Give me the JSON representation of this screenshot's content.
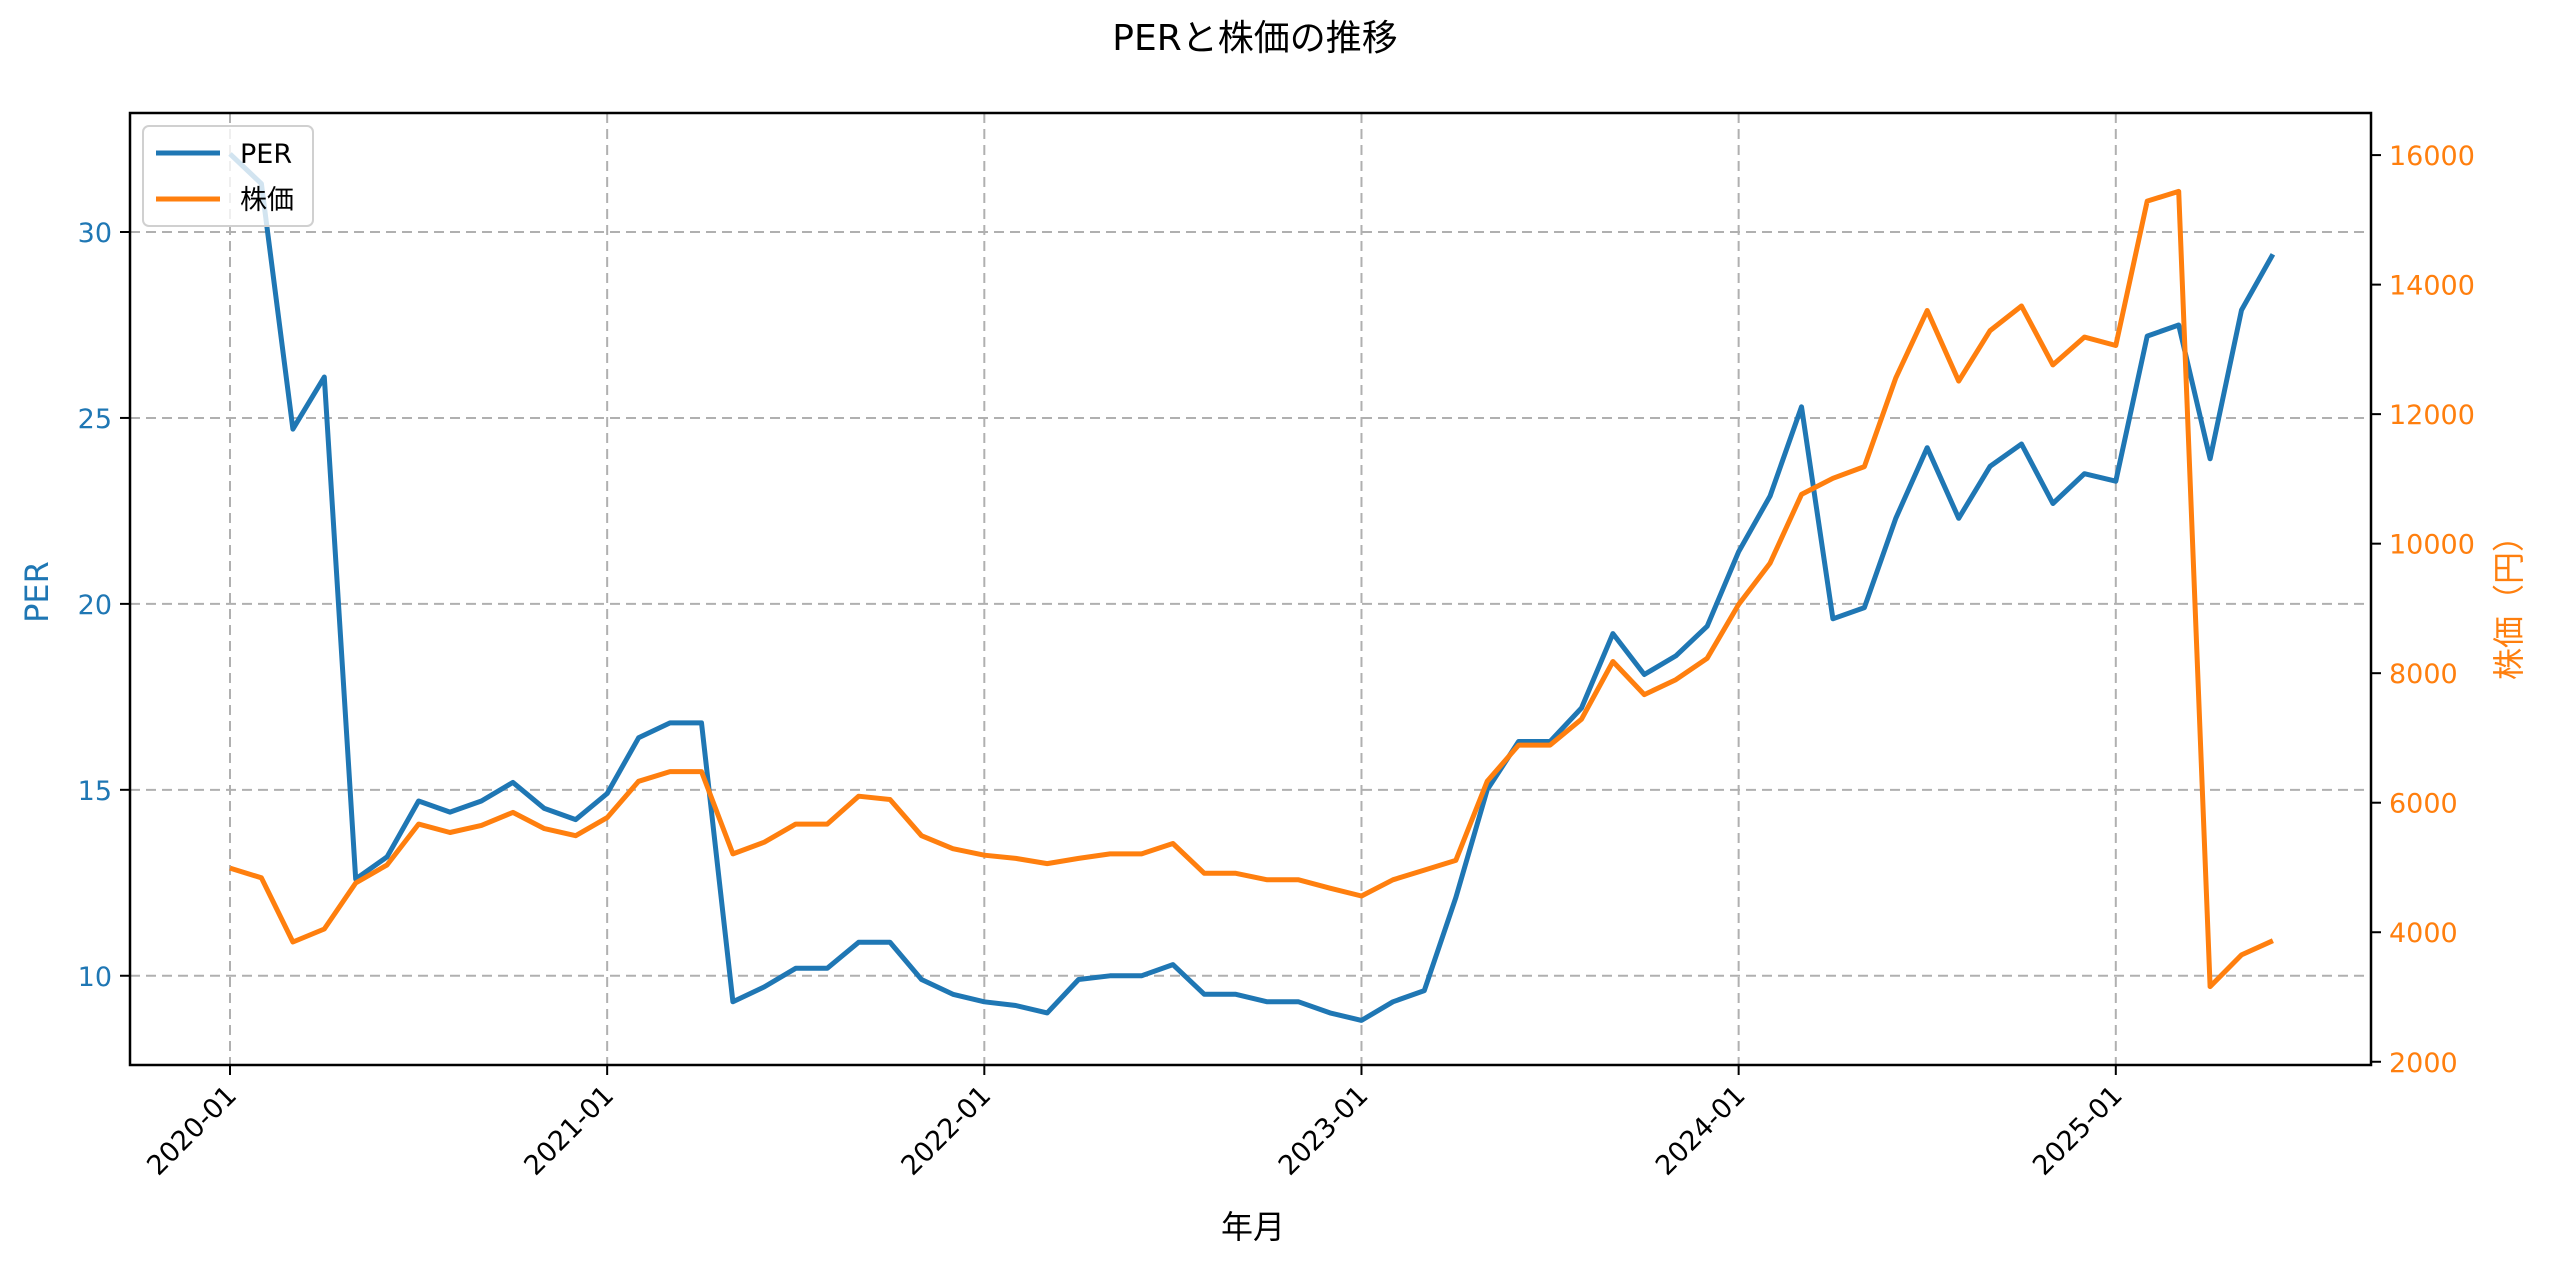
{
  "chart_data": {
    "type": "line",
    "title": "PERと株価の推移",
    "xlabel": "年月",
    "ylabel": "PER",
    "ylabel_right": "株価（円）",
    "grid": true,
    "legend_position": "upper left",
    "x_tick_labels": [
      "2020-01",
      "2021-01",
      "2022-01",
      "2023-01",
      "2024-01",
      "2025-01"
    ],
    "y_ticks_left": [
      10,
      15,
      20,
      25,
      30
    ],
    "y_ticks_right": [
      2000,
      4000,
      6000,
      8000,
      10000,
      12000,
      14000,
      16000
    ],
    "ylim": [
      7.6,
      33.2
    ],
    "ylim_right": [
      1950,
      16650
    ],
    "x": [
      "2020-01",
      "2020-02",
      "2020-03",
      "2020-04",
      "2020-05",
      "2020-06",
      "2020-07",
      "2020-08",
      "2020-09",
      "2020-10",
      "2020-11",
      "2020-12",
      "2021-01",
      "2021-02",
      "2021-03",
      "2021-04",
      "2021-05",
      "2021-06",
      "2021-07",
      "2021-08",
      "2021-09",
      "2021-10",
      "2021-11",
      "2021-12",
      "2022-01",
      "2022-02",
      "2022-03",
      "2022-04",
      "2022-05",
      "2022-06",
      "2022-07",
      "2022-08",
      "2022-09",
      "2022-10",
      "2022-11",
      "2022-12",
      "2023-01",
      "2023-02",
      "2023-03",
      "2023-04",
      "2023-05",
      "2023-06",
      "2023-07",
      "2023-08",
      "2023-09",
      "2023-10",
      "2023-11",
      "2023-12",
      "2024-01",
      "2024-02",
      "2024-03",
      "2024-04",
      "2024-05",
      "2024-06",
      "2024-07",
      "2024-08",
      "2024-09",
      "2024-10",
      "2024-11",
      "2024-12",
      "2025-01",
      "2025-02",
      "2025-03",
      "2025-04",
      "2025-05",
      "2025-06"
    ],
    "series": [
      {
        "name": "PER",
        "axis": "left",
        "color": "#1f77b4",
        "values": [
          32.1,
          31.3,
          24.7,
          26.1,
          12.6,
          13.2,
          14.7,
          14.4,
          14.7,
          15.2,
          14.5,
          14.2,
          14.9,
          16.4,
          16.8,
          16.8,
          9.3,
          9.7,
          10.2,
          10.2,
          10.9,
          10.9,
          9.9,
          9.5,
          9.3,
          9.2,
          9.0,
          9.9,
          10.0,
          10.0,
          10.3,
          9.5,
          9.5,
          9.3,
          9.3,
          9.0,
          8.8,
          9.3,
          9.6,
          12.1,
          15.0,
          16.3,
          16.3,
          17.2,
          19.2,
          18.1,
          18.6,
          19.4,
          21.4,
          22.9,
          25.3,
          19.6,
          19.9,
          22.3,
          24.2,
          22.3,
          23.7,
          24.3,
          22.7,
          23.5,
          23.3,
          27.2,
          27.5,
          23.9,
          27.9,
          29.4
        ]
      },
      {
        "name": "株価",
        "axis": "right",
        "color": "#ff7f0e",
        "values": [
          4990,
          4840,
          3850,
          4050,
          4760,
          5040,
          5670,
          5540,
          5650,
          5850,
          5600,
          5490,
          5770,
          6330,
          6480,
          6480,
          5210,
          5390,
          5670,
          5670,
          6100,
          6050,
          5490,
          5290,
          5190,
          5140,
          5060,
          5140,
          5210,
          5210,
          5370,
          4910,
          4910,
          4810,
          4810,
          4680,
          4560,
          4810,
          4960,
          5110,
          6330,
          6890,
          6890,
          7290,
          8180,
          7670,
          7900,
          8230,
          9060,
          9700,
          10760,
          11010,
          11190,
          12560,
          13600,
          12510,
          13290,
          13670,
          12760,
          13190,
          13060,
          15290,
          15440,
          3160,
          3650,
          3870
        ]
      }
    ]
  }
}
